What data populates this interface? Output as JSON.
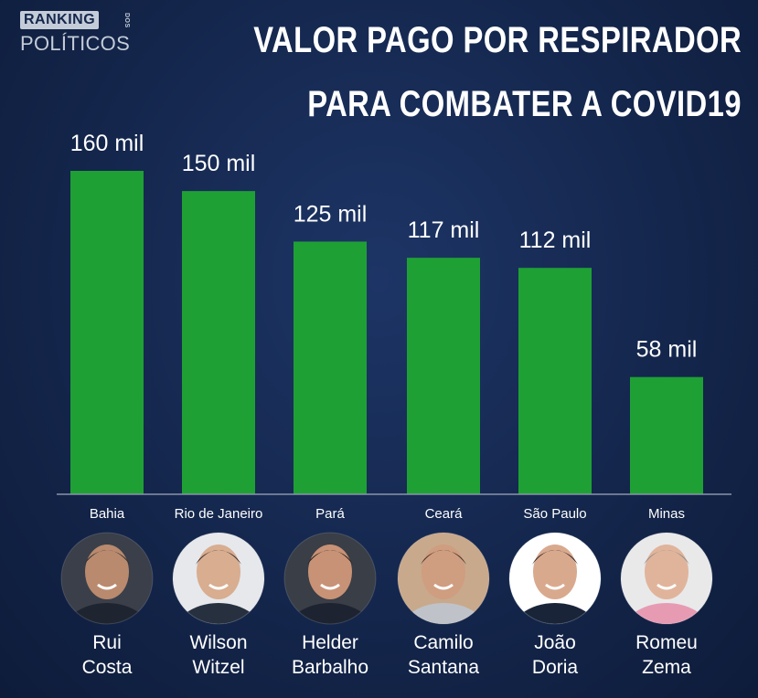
{
  "logo": {
    "line1": "RANKING",
    "line2": "POLÍTICOS",
    "side": "DOS"
  },
  "title": {
    "line1": "VALOR PAGO POR RESPIRADOR",
    "line2": "PARA COMBATER A COVID19"
  },
  "colors": {
    "bar": "#1fa035",
    "background": "#14264c",
    "baseline": "#8a94aa",
    "text": "#ffffff"
  },
  "chart_data": {
    "type": "bar",
    "title": "VALOR PAGO POR RESPIRADOR PARA COMBATER A COVID19",
    "categories": [
      "Bahia",
      "Rio de Janeiro",
      "Pará",
      "Ceará",
      "São Paulo",
      "Minas"
    ],
    "values": [
      160,
      150,
      125,
      117,
      112,
      58
    ],
    "data_labels": [
      "160 mil",
      "150 mil",
      "125 mil",
      "117 mil",
      "112 mil",
      "58 mil"
    ],
    "xlabel": "",
    "ylabel": "",
    "ylim": [
      0,
      160
    ],
    "grid": false,
    "legend": "none"
  },
  "people": [
    {
      "first": "Rui",
      "last": "Costa"
    },
    {
      "first": "Wilson",
      "last": "Witzel"
    },
    {
      "first": "Helder",
      "last": "Barbalho"
    },
    {
      "first": "Camilo",
      "last": "Santana"
    },
    {
      "first": "João",
      "last": "Doria"
    },
    {
      "first": "Romeu",
      "last": "Zema"
    }
  ]
}
